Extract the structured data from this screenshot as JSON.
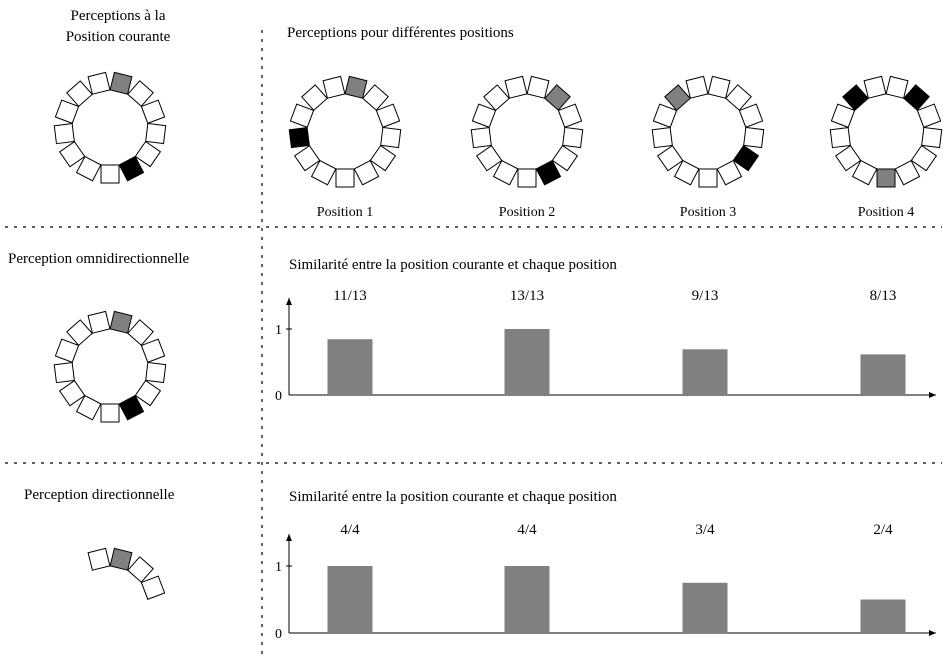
{
  "colors": {
    "empty": "#ffffff",
    "grey": "#808080",
    "black": "#000000"
  },
  "labels": {
    "current_title": "Perceptions à la\nPosition courante",
    "positions_title": "Perceptions pour différentes positions",
    "omni_title": "Perception omnidirectionnelle",
    "dir_title": "Perception directionnelle",
    "omni_chart_title": "Similarité entre la position courante et chaque position",
    "dir_chart_title": "Similarité entre la position courante et chaque position"
  },
  "rings": {
    "current": {
      "grey": [
        0
      ],
      "black": [
        5
      ]
    },
    "positions": [
      {
        "label": "Position 1",
        "grey": [
          0
        ],
        "black": [
          9
        ]
      },
      {
        "label": "Position 2",
        "grey": [
          1
        ],
        "black": [
          5
        ]
      },
      {
        "label": "Position 3",
        "grey": [
          11
        ],
        "black": [
          4
        ]
      },
      {
        "label": "Position 4",
        "grey": [
          6
        ],
        "black": [
          1,
          11
        ]
      }
    ],
    "omni": {
      "grey": [
        0
      ],
      "black": [
        5
      ]
    },
    "directional": {
      "grey": [
        0
      ],
      "black": []
    }
  },
  "chart_data": [
    {
      "type": "bar",
      "title": "Similarité entre la position courante et chaque position",
      "categories": [
        "Position 1",
        "Position 2",
        "Position 3",
        "Position 4"
      ],
      "values": [
        0.846,
        1.0,
        0.692,
        0.615
      ],
      "data_labels": [
        "11/13",
        "13/13",
        "9/13",
        "8/13"
      ],
      "yticks": [
        "0",
        "1"
      ],
      "ylim": [
        0,
        1
      ],
      "grid": false
    },
    {
      "type": "bar",
      "title": "Similarité entre la position courante et chaque position",
      "categories": [
        "Position 1",
        "Position 2",
        "Position 3",
        "Position 4"
      ],
      "values": [
        1.0,
        1.0,
        0.75,
        0.5
      ],
      "data_labels": [
        "4/4",
        "4/4",
        "3/4",
        "2/4"
      ],
      "yticks": [
        "0",
        "1"
      ],
      "ylim": [
        0,
        1
      ],
      "grid": false
    }
  ]
}
